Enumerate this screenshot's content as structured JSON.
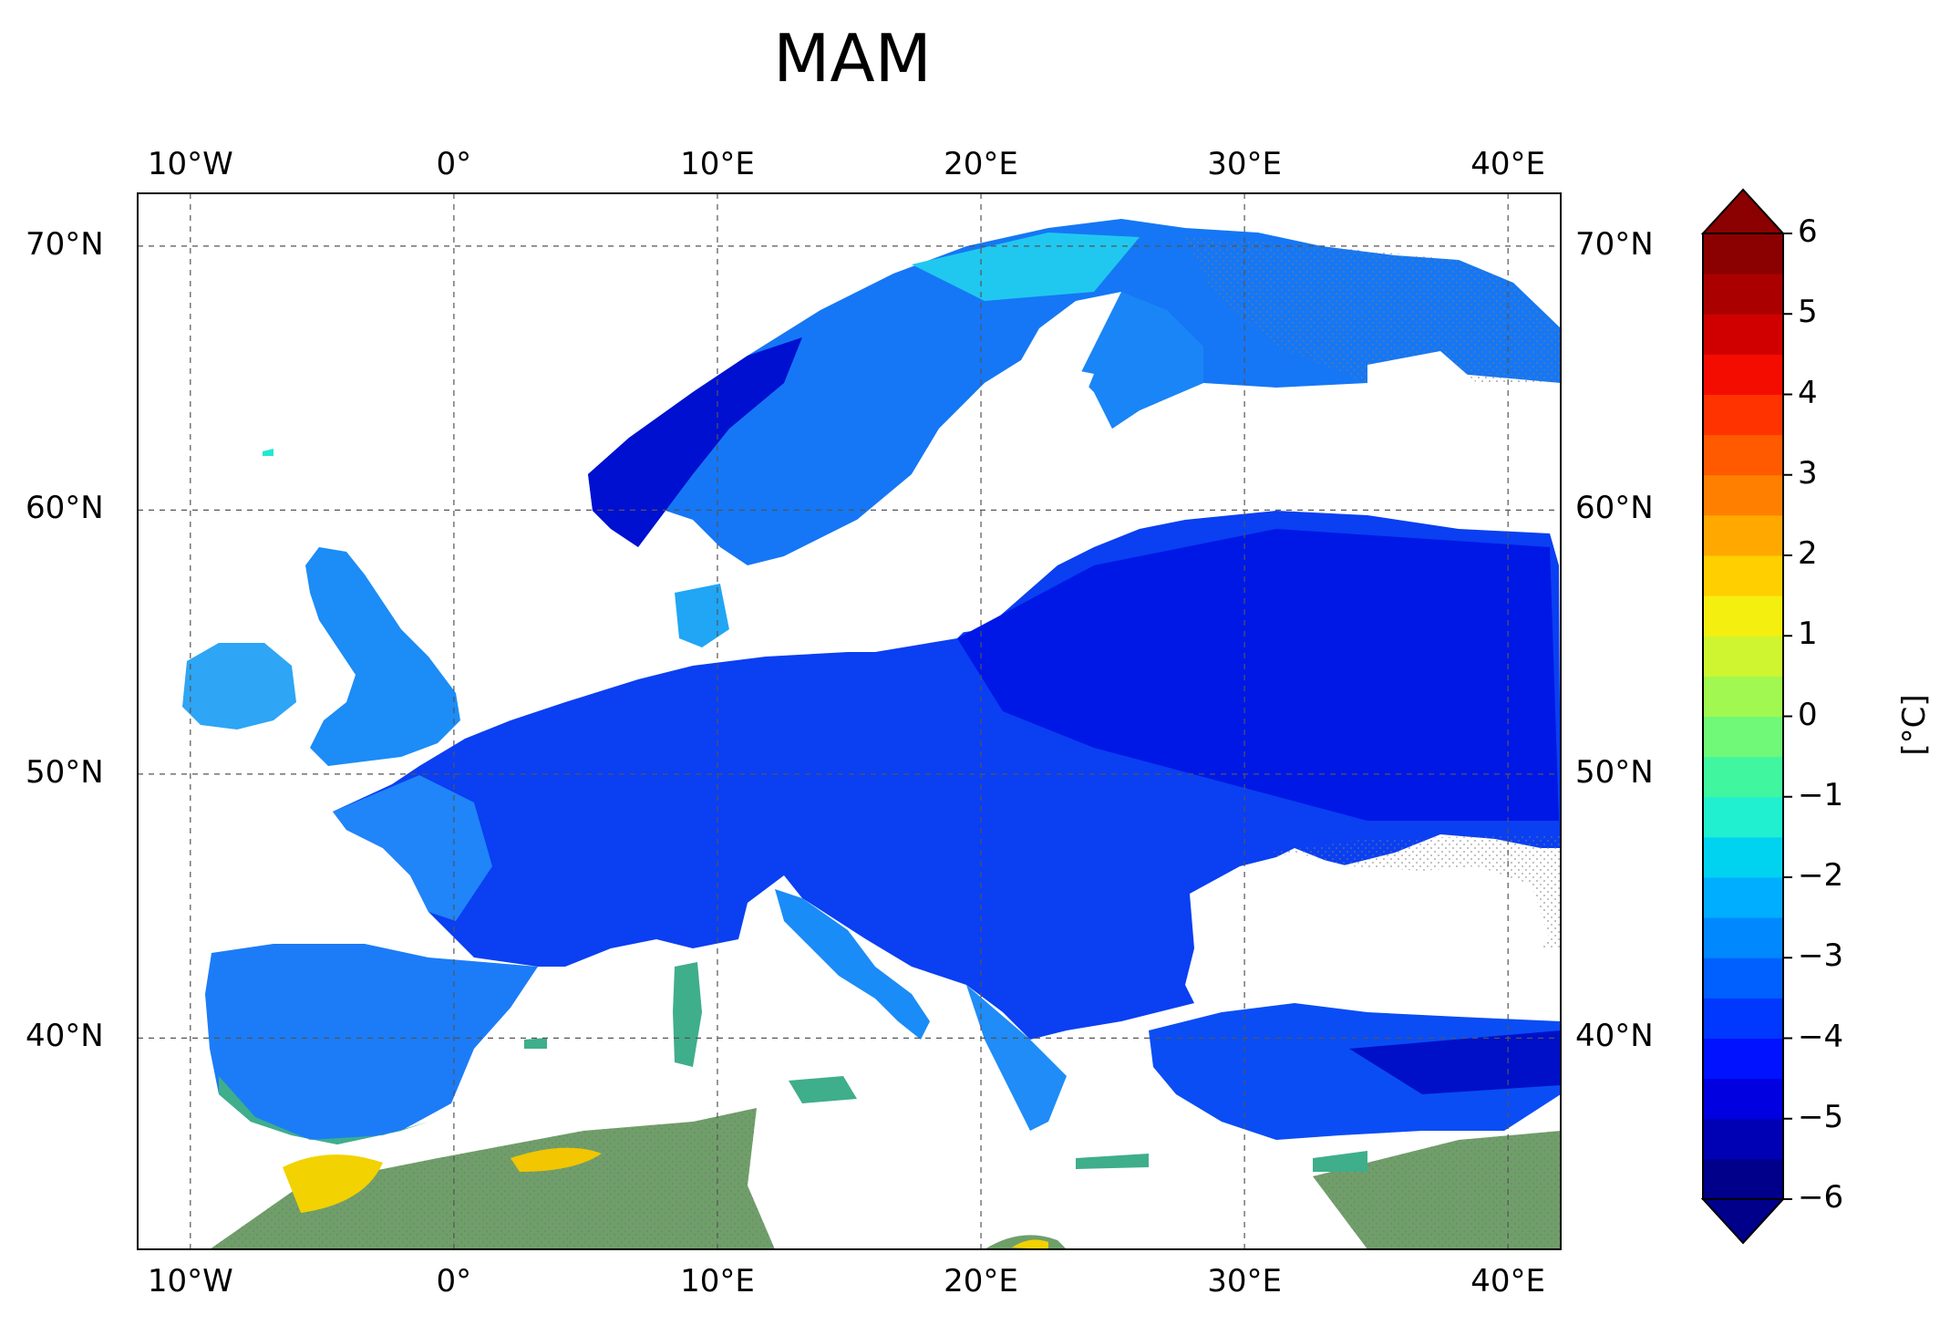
{
  "title": "MAM",
  "map": {
    "x_tick_labels": [
      "10°W",
      "0°",
      "10°E",
      "20°E",
      "30°E",
      "40°E"
    ],
    "y_tick_labels": [
      "70°N",
      "60°N",
      "50°N",
      "40°N"
    ],
    "lon_ticks": [
      -10,
      0,
      10,
      20,
      30,
      40
    ],
    "lat_ticks": [
      70,
      60,
      50,
      40
    ],
    "lon_range": [
      -12,
      42
    ],
    "lat_range": [
      32,
      72
    ],
    "grid": true,
    "stippling": true
  },
  "colorbar": {
    "unit_label": "[°C]",
    "tick_labels": [
      "6",
      "5",
      "4",
      "3",
      "2",
      "1",
      "0",
      "−1",
      "−2",
      "−3",
      "−4",
      "−5",
      "−6"
    ],
    "tick_values": [
      6,
      5,
      4,
      3,
      2,
      1,
      0,
      -1,
      -2,
      -3,
      -4,
      -5,
      -6
    ],
    "range": [
      -6,
      6
    ],
    "extend": "both",
    "colors": [
      "#00008b",
      "#0000b5",
      "#0000e0",
      "#0012ff",
      "#0038ff",
      "#0060ff",
      "#0088ff",
      "#00aeff",
      "#00d3f0",
      "#20f0d0",
      "#40f7a0",
      "#70f878",
      "#a0f850",
      "#cff530",
      "#f5ef10",
      "#ffcf00",
      "#ffa800",
      "#ff8000",
      "#ff5a00",
      "#ff3300",
      "#f50c00",
      "#d00000",
      "#ab0000",
      "#8b0000"
    ]
  }
}
